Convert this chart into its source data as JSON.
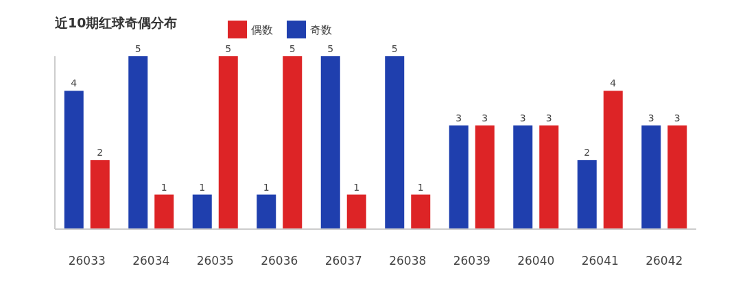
{
  "chart_data": {
    "type": "bar",
    "title": "近10期红球奇偶分布",
    "categories": [
      "26033",
      "26034",
      "26035",
      "26036",
      "26037",
      "26038",
      "26039",
      "26040",
      "26041",
      "26042"
    ],
    "series": [
      {
        "name": "奇数",
        "color": "#1f3fae",
        "values": [
          4,
          5,
          1,
          1,
          5,
          5,
          3,
          3,
          2,
          3
        ]
      },
      {
        "name": "偶数",
        "color": "#dd2426",
        "values": [
          2,
          1,
          5,
          5,
          1,
          1,
          3,
          3,
          4,
          3
        ]
      }
    ],
    "data_labels": true,
    "legend": "top",
    "grid": false
  }
}
